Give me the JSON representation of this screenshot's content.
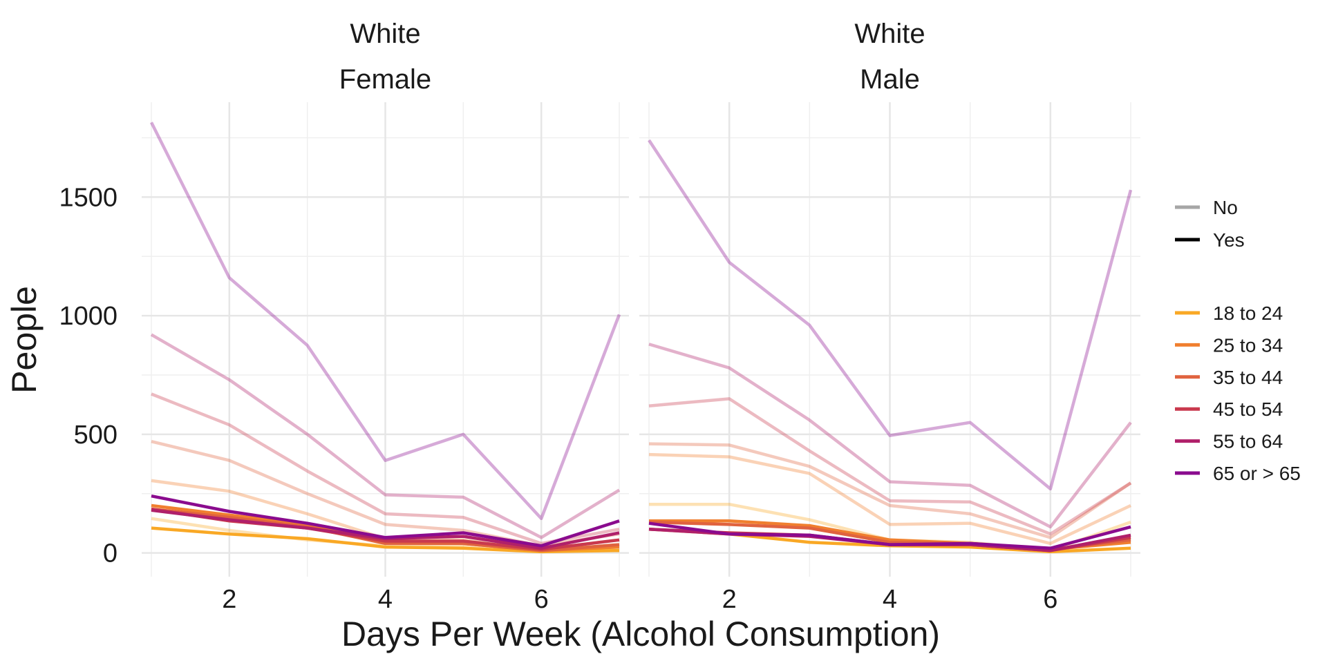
{
  "chart_data": {
    "type": "line",
    "xlabel": "Days Per Week (Alcohol Consumption)",
    "ylabel": "People",
    "x": [
      1,
      2,
      3,
      4,
      5,
      6,
      7
    ],
    "xlim": [
      1,
      7
    ],
    "ylim": [
      -100,
      1900
    ],
    "x_ticks": [
      2,
      4,
      6
    ],
    "y_ticks": [
      0,
      500,
      1000,
      1500
    ],
    "grid": true,
    "legend_position": "right",
    "legend_linetype": {
      "entries": [
        {
          "label": "No",
          "color": "#a6a6a6"
        },
        {
          "label": "Yes",
          "color": "#000000"
        }
      ]
    },
    "legend_color": {
      "entries": [
        {
          "label": "18 to 24",
          "color": "#f9a825"
        },
        {
          "label": "25 to 34",
          "color": "#f07f2f"
        },
        {
          "label": "35 to 44",
          "color": "#e0633f"
        },
        {
          "label": "45 to 54",
          "color": "#c9394e"
        },
        {
          "label": "55 to 64",
          "color": "#b0206a"
        },
        {
          "label": "65 or > 65",
          "color": "#8a0b8e"
        }
      ]
    },
    "panels": [
      {
        "strip_top": "White",
        "strip_bottom": "Female",
        "series": [
          {
            "group": "18 to 24",
            "status": "No",
            "values": [
              145,
              95,
              55,
              30,
              30,
              5,
              15
            ]
          },
          {
            "group": "25 to 34",
            "status": "No",
            "values": [
              305,
              260,
              165,
              60,
              55,
              15,
              55
            ]
          },
          {
            "group": "35 to 44",
            "status": "No",
            "values": [
              470,
              390,
              250,
              120,
              95,
              30,
              80
            ]
          },
          {
            "group": "45 to 54",
            "status": "No",
            "values": [
              670,
              540,
              345,
              165,
              150,
              40,
              100
            ]
          },
          {
            "group": "55 to 64",
            "status": "No",
            "values": [
              920,
              730,
              500,
              245,
              235,
              65,
              265
            ]
          },
          {
            "group": "65 or > 65",
            "status": "No",
            "values": [
              1815,
              1160,
              875,
              390,
              500,
              145,
              1005
            ]
          },
          {
            "group": "18 to 24",
            "status": "Yes",
            "values": [
              105,
              80,
              60,
              25,
              20,
              5,
              10
            ]
          },
          {
            "group": "25 to 34",
            "status": "Yes",
            "values": [
              200,
              160,
              120,
              45,
              40,
              10,
              25
            ]
          },
          {
            "group": "35 to 44",
            "status": "Yes",
            "values": [
              185,
              150,
              110,
              40,
              40,
              10,
              35
            ]
          },
          {
            "group": "45 to 54",
            "status": "Yes",
            "values": [
              185,
              135,
              105,
              50,
              50,
              15,
              55
            ]
          },
          {
            "group": "55 to 64",
            "status": "Yes",
            "values": [
              180,
              140,
              105,
              60,
              70,
              20,
              85
            ]
          },
          {
            "group": "65 or > 65",
            "status": "Yes",
            "values": [
              240,
              175,
              125,
              65,
              85,
              30,
              135
            ]
          }
        ]
      },
      {
        "strip_top": "White",
        "strip_bottom": "Male",
        "series": [
          {
            "group": "18 to 24",
            "status": "No",
            "values": [
              205,
              205,
              140,
              55,
              45,
              10,
              130
            ]
          },
          {
            "group": "25 to 34",
            "status": "No",
            "values": [
              415,
              405,
              335,
              120,
              125,
              40,
              200
            ]
          },
          {
            "group": "35 to 44",
            "status": "No",
            "values": [
              460,
              455,
              365,
              200,
              165,
              65,
              295
            ]
          },
          {
            "group": "45 to 54",
            "status": "No",
            "values": [
              620,
              650,
              430,
              220,
              215,
              80,
              295
            ]
          },
          {
            "group": "55 to 64",
            "status": "No",
            "values": [
              880,
              780,
              560,
              300,
              285,
              110,
              550
            ]
          },
          {
            "group": "65 or > 65",
            "status": "No",
            "values": [
              1740,
              1225,
              960,
              495,
              550,
              270,
              1530
            ]
          },
          {
            "group": "18 to 24",
            "status": "Yes",
            "values": [
              100,
              80,
              45,
              30,
              25,
              5,
              20
            ]
          },
          {
            "group": "25 to 34",
            "status": "Yes",
            "values": [
              135,
              135,
              115,
              55,
              40,
              15,
              45
            ]
          },
          {
            "group": "35 to 44",
            "status": "Yes",
            "values": [
              130,
              120,
              105,
              45,
              40,
              15,
              55
            ]
          },
          {
            "group": "45 to 54",
            "status": "Yes",
            "values": [
              100,
              85,
              75,
              35,
              35,
              10,
              65
            ]
          },
          {
            "group": "55 to 64",
            "status": "Yes",
            "values": [
              100,
              80,
              70,
              35,
              35,
              10,
              75
            ]
          },
          {
            "group": "65 or > 65",
            "status": "Yes",
            "values": [
              125,
              80,
              75,
              35,
              40,
              20,
              110
            ]
          }
        ]
      }
    ]
  }
}
